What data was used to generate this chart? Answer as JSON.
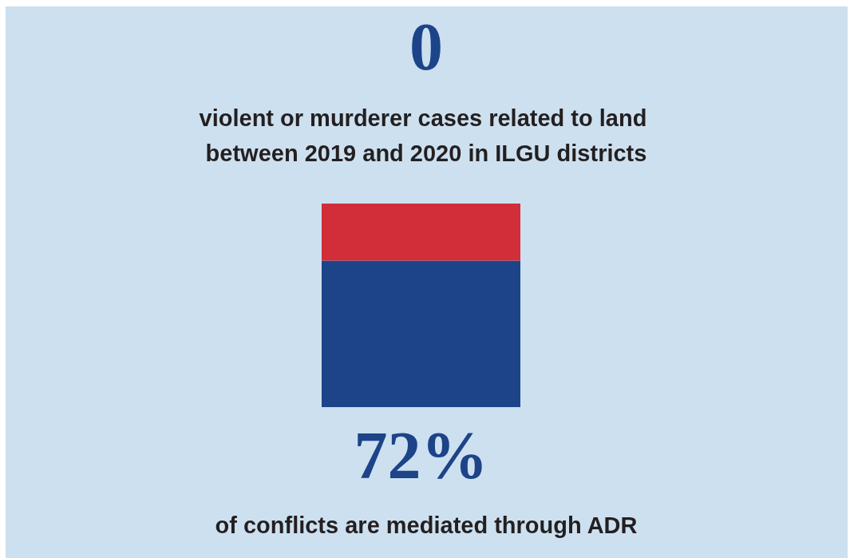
{
  "chart_data": {
    "type": "bar",
    "stacked": true,
    "categories": [
      null
    ],
    "series": [
      {
        "color": "#1d4489",
        "values": [
          72
        ],
        "value_labels": [
          "72%"
        ]
      },
      {
        "color": "#d12e39",
        "values": [
          28
        ]
      }
    ],
    "annotations": [
      "0",
      "violent or murderer cases related to land between 2019 and 2020 in ILGU districts",
      "of conflicts are mediated through ADR"
    ]
  }
}
